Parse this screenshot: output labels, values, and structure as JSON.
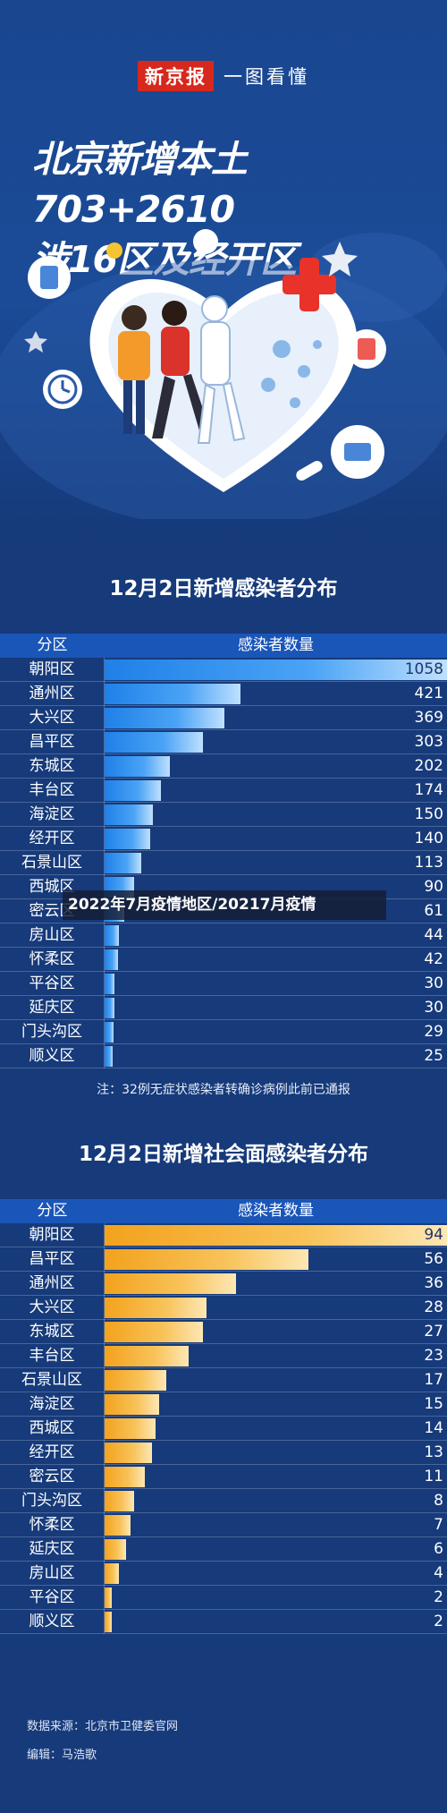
{
  "header": {
    "brand_logo": "新京报",
    "brand_tagline": "一图看懂",
    "title_line1": "北京新增本土703+2610",
    "title_line2": "涉16区及经开区"
  },
  "overlay_caption": "2022年7月疫情地区/20217月疫情",
  "colors": {
    "background": "#163a7a",
    "bar_blue": "#1f80e8",
    "bar_orange": "#f3a21d",
    "brand_red": "#d6281c"
  },
  "chart_data": [
    {
      "type": "bar",
      "orientation": "horizontal",
      "title": "12月2日新增感染者分布",
      "column_headers": [
        "分区",
        "感染者数量"
      ],
      "categories": [
        "朝阳区",
        "通州区",
        "大兴区",
        "昌平区",
        "东城区",
        "丰台区",
        "海淀区",
        "经开区",
        "石景山区",
        "西城区",
        "密云区",
        "房山区",
        "怀柔区",
        "平谷区",
        "延庆区",
        "门头沟区",
        "顺义区"
      ],
      "values": [
        1058,
        421,
        369,
        303,
        202,
        174,
        150,
        140,
        113,
        90,
        61,
        44,
        42,
        30,
        30,
        29,
        25
      ],
      "note": "注：32例无症状感染者转确诊病例此前已通报"
    },
    {
      "type": "bar",
      "orientation": "horizontal",
      "title": "12月2日新增社会面感染者分布",
      "column_headers": [
        "分区",
        "感染者数量"
      ],
      "categories": [
        "朝阳区",
        "昌平区",
        "通州区",
        "大兴区",
        "东城区",
        "丰台区",
        "石景山区",
        "海淀区",
        "西城区",
        "经开区",
        "密云区",
        "门头沟区",
        "怀柔区",
        "延庆区",
        "房山区",
        "平谷区",
        "顺义区"
      ],
      "values": [
        94,
        56,
        36,
        28,
        27,
        23,
        17,
        15,
        14,
        13,
        11,
        8,
        7,
        6,
        4,
        2,
        2
      ]
    }
  ],
  "footer": {
    "source": "数据来源：北京市卫健委官网",
    "editor": "编辑：马浩歌"
  }
}
